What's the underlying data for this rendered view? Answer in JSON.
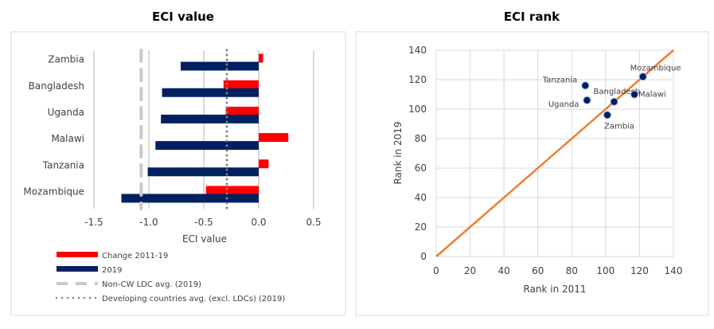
{
  "chart_data": [
    {
      "type": "bar",
      "orientation": "horizontal",
      "title": "ECI value",
      "xlabel": "ECI value",
      "xlim": [
        -1.5,
        0.5
      ],
      "xticks": [
        "-1.5",
        "-1.0",
        "-0.5",
        "0.0",
        "0.5"
      ],
      "grid": "vertical",
      "categories": [
        "Zambia",
        "Bangladesh",
        "Uganda",
        "Malawi",
        "Tanzania",
        "Mozambique"
      ],
      "series": [
        {
          "name": "Change 2011-19",
          "color": "#ff0000",
          "values": [
            0.04,
            -0.32,
            -0.3,
            0.27,
            0.09,
            -0.48
          ]
        },
        {
          "name": "2019",
          "color": "#002060",
          "values": [
            -0.71,
            -0.88,
            -0.89,
            -0.94,
            -1.01,
            -1.25
          ]
        }
      ],
      "reference_lines": [
        {
          "name": "Non-CW LDC avg. (2019)",
          "value": -1.07,
          "style": "dashed",
          "color": "#c8c8c8"
        },
        {
          "name": "Developing countries avg. (excl. LDCs) (2019)",
          "value": -0.29,
          "style": "dotted",
          "color": "#808080"
        }
      ],
      "legend": "bottom"
    },
    {
      "type": "scatter",
      "title": "ECI rank",
      "xlabel": "Rank in 2011",
      "ylabel": "Rank in 2019",
      "xlim": [
        0,
        140
      ],
      "ylim": [
        0,
        140
      ],
      "xticks": [
        "0",
        "20",
        "40",
        "60",
        "80",
        "100",
        "120",
        "140"
      ],
      "yticks": [
        "0",
        "20",
        "40",
        "60",
        "80",
        "100",
        "120",
        "140"
      ],
      "grid": true,
      "point_color": "#002060",
      "line_color": "#ed7d31",
      "points": [
        {
          "label": "Tanzania",
          "x": 88,
          "y": 116
        },
        {
          "label": "Uganda",
          "x": 89,
          "y": 106
        },
        {
          "label": "Bangladesh",
          "x": 105,
          "y": 105
        },
        {
          "label": "Zambia",
          "x": 101,
          "y": 96
        },
        {
          "label": "Malawi",
          "x": 117,
          "y": 110
        },
        {
          "label": "Mozambique",
          "x": 122,
          "y": 122
        }
      ],
      "diagonal": [
        [
          0,
          0
        ],
        [
          140,
          140
        ]
      ]
    }
  ]
}
